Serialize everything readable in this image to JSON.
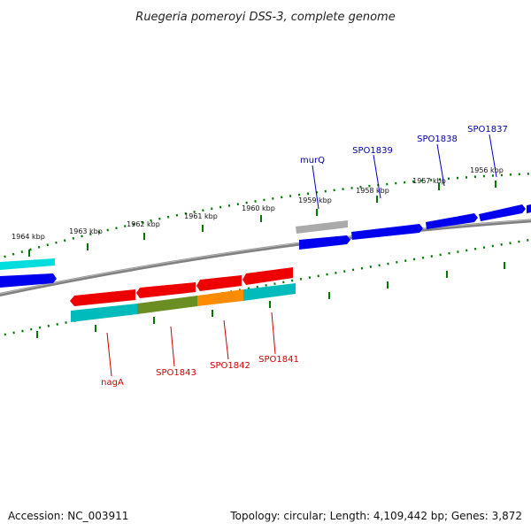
{
  "title": "Ruegeria pomeroyi DSS-3, complete genome",
  "footer": {
    "accession": "Accession: NC_003911",
    "summary": "Topology: circular; Length: 4,109,442 bp; Genes: 3,872"
  },
  "scale_labels": [
    "1956 kbp",
    "1957 kbp",
    "1958 kbp",
    "1959 kbp",
    "1960 kbp",
    "1961 kbp",
    "1962 kbp",
    "1963 kbp",
    "1964 kbp"
  ],
  "genes": {
    "forward": [
      {
        "label": "SPO1837",
        "color": "#0000ee"
      },
      {
        "label": "SPO1838",
        "color": "#0000ee"
      },
      {
        "label": "SPO1839",
        "color": "#0000ee"
      },
      {
        "label": "murQ",
        "color": "#aaaaaa"
      }
    ],
    "reverse": [
      {
        "label": "SPO1841",
        "color": "#ee0000",
        "cog_color": "#00bbbb"
      },
      {
        "label": "SPO1842",
        "color": "#ee0000",
        "cog_color": "#ff8c00"
      },
      {
        "label": "SPO1843",
        "color": "#ee0000",
        "cog_color": "#6b8e23"
      },
      {
        "label": "nagA",
        "color": "#ee0000",
        "cog_color": "#00bbbb"
      }
    ]
  },
  "colors": {
    "backbone": "#808080",
    "forward_label": "#0000aa",
    "reverse_label": "#cc0000",
    "scale": "#007700",
    "offscreen_cyan": "#00dddd"
  }
}
